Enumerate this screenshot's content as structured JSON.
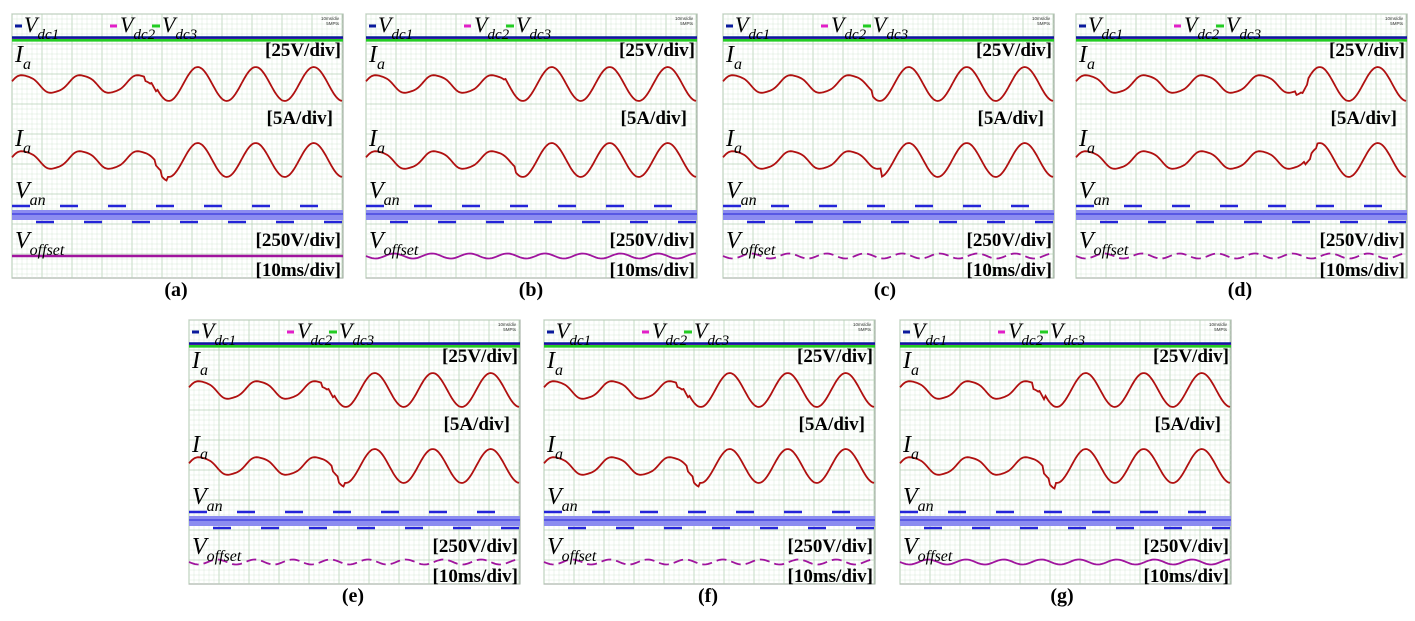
{
  "legend": {
    "v1": "V",
    "v1_sub": "dc1",
    "v2": "V",
    "v2_sub": "dc2",
    "v3": "V",
    "v3_sub": "dc3",
    "sep": ","
  },
  "labels": {
    "ia": "I",
    "ia_sub": "a",
    "van": "V",
    "van_sub": "an",
    "voff": "V",
    "voff_sub": "offset"
  },
  "scales": {
    "vdc": "[25V/div]",
    "ia": "[5A/div]",
    "van": "[250V/div]",
    "time": "[10ms/div]"
  },
  "scope_header": [
    "10ms/div",
    "5MPts"
  ],
  "colors": {
    "vdc1": "#0a1a9c",
    "vdc2": "#e21ec8",
    "vdc3": "#22cc22",
    "ia": "#b01010",
    "van": "#2424d8",
    "van_fill": "#8c8cf0",
    "voffset": "#a0149e",
    "grid": "#cfe3cf",
    "grid_major": "#b7d2b7"
  },
  "chart_data": [
    {
      "id": "a",
      "caption": "(a)",
      "type": "line",
      "step_phase": 0.42,
      "post_dip": 0.4,
      "offset_mode": "flat"
    },
    {
      "id": "b",
      "caption": "(b)",
      "type": "line",
      "step_phase": 0.42,
      "post_dip": 0.0,
      "offset_mode": "ripple"
    },
    {
      "id": "c",
      "caption": "(c)",
      "type": "line",
      "step_phase": 0.45,
      "post_dip": 0.0,
      "offset_mode": "dashed-two-level"
    },
    {
      "id": "d",
      "caption": "(d)",
      "type": "line",
      "step_phase": 0.68,
      "post_dip": 0.4,
      "offset_mode": "dashed-ripple"
    },
    {
      "id": "e",
      "caption": "(e)",
      "type": "line",
      "step_phase": 0.42,
      "post_dip": 0.4,
      "offset_mode": "dashed-ripple"
    },
    {
      "id": "f",
      "caption": "(f)",
      "type": "line",
      "step_phase": 0.42,
      "post_dip": 0.4,
      "offset_mode": "dashed-ripple"
    },
    {
      "id": "g",
      "caption": "(g)",
      "type": "line",
      "step_phase": 0.42,
      "post_dip": 0.6,
      "offset_mode": "step-ripple"
    }
  ]
}
